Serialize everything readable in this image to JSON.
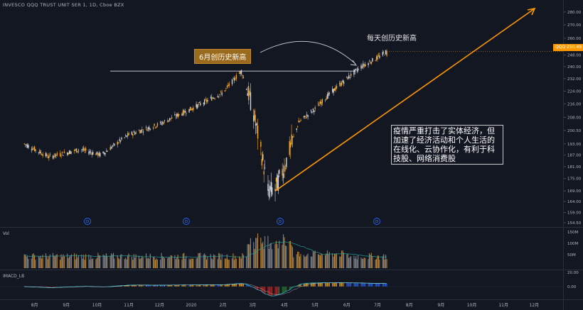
{
  "title": "INVESCO QQQ TRUST UNIT SER 1, 1D, Cboe BZX",
  "symbol": "QQQ",
  "last_price": "250.49",
  "annotations": {
    "june_high": "6月创历史新高",
    "daily_high": "每天创历史新高",
    "commentary": "疫情严重打击了实体经济，但加速了经济活动和个人生活的在线化、云协作化，有利于科技股、网络消费股"
  },
  "volume_pane": {
    "label": "Vol"
  },
  "macd_pane": {
    "label": "IMACD_LB"
  },
  "colors": {
    "background": "#131722",
    "up": "#f5a623",
    "down": "#d1d4dc",
    "accent": "#ff9800",
    "grid": "#2a2e39"
  },
  "price_axis": [
    "280.00",
    "270.00",
    "260.00",
    "248.00",
    "240.00",
    "232.00",
    "224.00",
    "216.00",
    "208.00",
    "200.50",
    "193.00",
    "187.00",
    "181.00",
    "175.00",
    "169.00",
    "164.00",
    "159.00",
    "154.50"
  ],
  "volume_axis": [
    "150M",
    "100M",
    "50M"
  ],
  "macd_axis": [
    "20.00",
    "0.00"
  ],
  "time_axis": [
    "8月",
    "9月",
    "10月",
    "11月",
    "12月",
    "2020",
    "2月",
    "3月",
    "4月",
    "5月",
    "6月",
    "7月",
    "8月",
    "9月",
    "10月",
    "11月",
    "12月"
  ],
  "event_markers": [
    "D",
    "D",
    "D",
    "D"
  ],
  "chart_data": {
    "type": "candlestick",
    "title": "INVESCO QQQ TRUST UNIT SER 1, 1D, Cboe BZX",
    "y_scale": "log",
    "ylim": [
      154.5,
      285
    ],
    "last": 250.49,
    "series_anchors": [
      {
        "date": "2019-07-22",
        "close": 193
      },
      {
        "date": "2019-08-15",
        "close": 186
      },
      {
        "date": "2019-09-15",
        "close": 190
      },
      {
        "date": "2019-10-05",
        "close": 187
      },
      {
        "date": "2019-11-01",
        "close": 198
      },
      {
        "date": "2019-12-01",
        "close": 204
      },
      {
        "date": "2020-01-01",
        "close": 213
      },
      {
        "date": "2020-02-01",
        "close": 223
      },
      {
        "date": "2020-02-19",
        "close": 237
      },
      {
        "date": "2020-03-01",
        "close": 213
      },
      {
        "date": "2020-03-16",
        "close": 169
      },
      {
        "date": "2020-03-23",
        "close": 170
      },
      {
        "date": "2020-04-01",
        "close": 181
      },
      {
        "date": "2020-04-15",
        "close": 205
      },
      {
        "date": "2020-05-01",
        "close": 213
      },
      {
        "date": "2020-05-15",
        "close": 222
      },
      {
        "date": "2020-06-01",
        "close": 232
      },
      {
        "date": "2020-06-15",
        "close": 240
      },
      {
        "date": "2020-07-01",
        "close": 246
      },
      {
        "date": "2020-07-10",
        "close": 250.49
      }
    ],
    "horizontal_line": {
      "level": 237,
      "label": "6月创历史新高"
    },
    "trend_arrow": {
      "from": {
        "date": "2020-03-23",
        "value": 169
      },
      "to": {
        "date": "2020-12-31",
        "value": 282
      }
    }
  }
}
